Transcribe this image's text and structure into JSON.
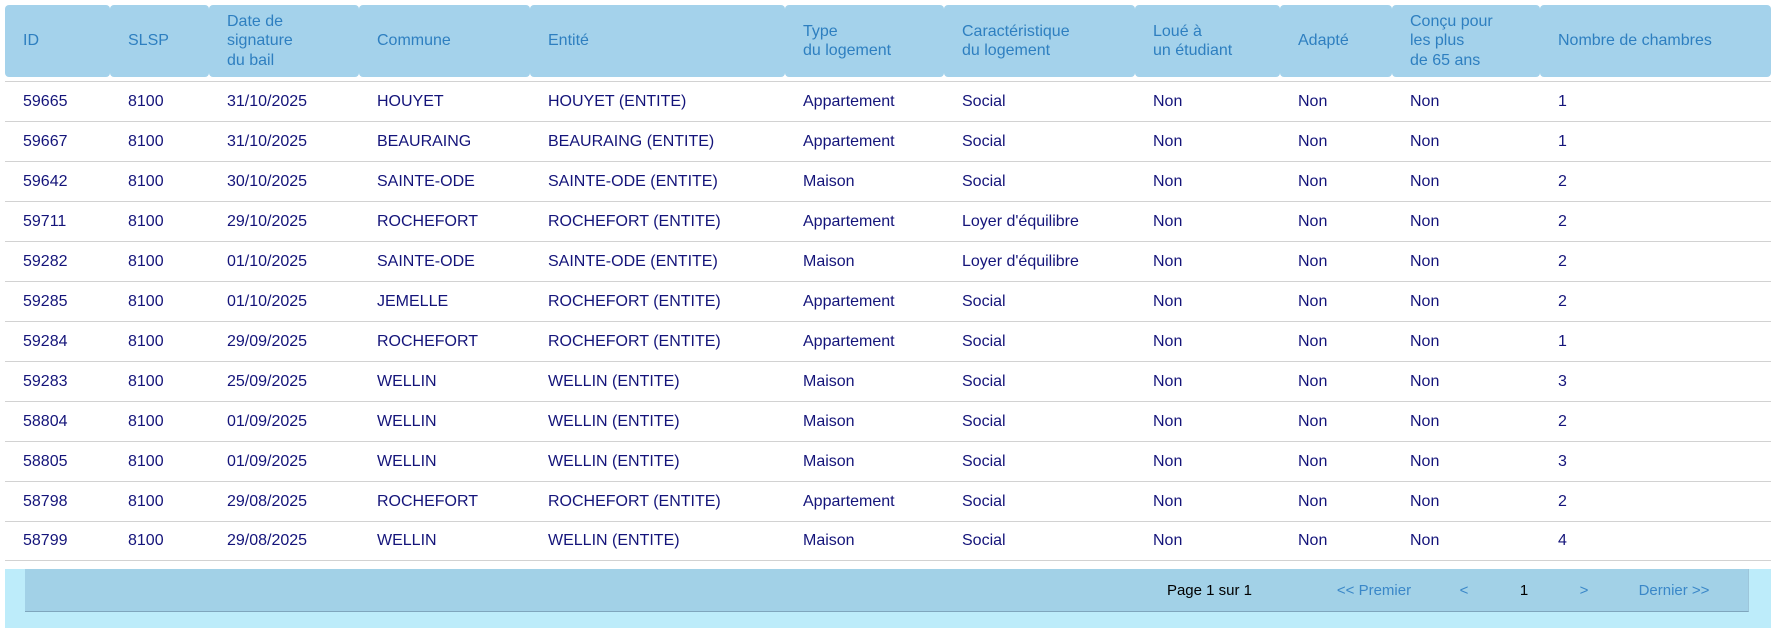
{
  "table": {
    "columns": [
      {
        "id": "id",
        "label": "ID"
      },
      {
        "id": "slsp",
        "label": "SLSP"
      },
      {
        "id": "date-signature-bail",
        "label": "Date de\nsignature\ndu bail"
      },
      {
        "id": "commune",
        "label": "Commune"
      },
      {
        "id": "entite",
        "label": "Entité"
      },
      {
        "id": "type-logement",
        "label": "Type\ndu logement"
      },
      {
        "id": "caracteristique-logement",
        "label": "Caractéristique\ndu logement"
      },
      {
        "id": "loue-etudiant",
        "label": "Loué à\nun étudiant"
      },
      {
        "id": "adapte",
        "label": "Adapté"
      },
      {
        "id": "concu-65-ans",
        "label": "Conçu pour\nles plus\nde 65 ans"
      },
      {
        "id": "nombre-chambres",
        "label": "Nombre de chambres"
      }
    ],
    "rows": [
      [
        "59665",
        "8100",
        "31/10/2025",
        "HOUYET",
        "HOUYET (ENTITE)",
        "Appartement",
        "Social",
        "Non",
        "Non",
        "Non",
        "1"
      ],
      [
        "59667",
        "8100",
        "31/10/2025",
        "BEAURAING",
        "BEAURAING (ENTITE)",
        "Appartement",
        "Social",
        "Non",
        "Non",
        "Non",
        "1"
      ],
      [
        "59642",
        "8100",
        "30/10/2025",
        "SAINTE-ODE",
        "SAINTE-ODE (ENTITE)",
        "Maison",
        "Social",
        "Non",
        "Non",
        "Non",
        "2"
      ],
      [
        "59711",
        "8100",
        "29/10/2025",
        "ROCHEFORT",
        "ROCHEFORT (ENTITE)",
        "Appartement",
        "Loyer d'équilibre",
        "Non",
        "Non",
        "Non",
        "2"
      ],
      [
        "59282",
        "8100",
        "01/10/2025",
        "SAINTE-ODE",
        "SAINTE-ODE (ENTITE)",
        "Maison",
        "Loyer d'équilibre",
        "Non",
        "Non",
        "Non",
        "2"
      ],
      [
        "59285",
        "8100",
        "01/10/2025",
        "JEMELLE",
        "ROCHEFORT (ENTITE)",
        "Appartement",
        "Social",
        "Non",
        "Non",
        "Non",
        "2"
      ],
      [
        "59284",
        "8100",
        "29/09/2025",
        "ROCHEFORT",
        "ROCHEFORT (ENTITE)",
        "Appartement",
        "Social",
        "Non",
        "Non",
        "Non",
        "1"
      ],
      [
        "59283",
        "8100",
        "25/09/2025",
        "WELLIN",
        "WELLIN (ENTITE)",
        "Maison",
        "Social",
        "Non",
        "Non",
        "Non",
        "3"
      ],
      [
        "58804",
        "8100",
        "01/09/2025",
        "WELLIN",
        "WELLIN (ENTITE)",
        "Maison",
        "Social",
        "Non",
        "Non",
        "Non",
        "2"
      ],
      [
        "58805",
        "8100",
        "01/09/2025",
        "WELLIN",
        "WELLIN (ENTITE)",
        "Maison",
        "Social",
        "Non",
        "Non",
        "Non",
        "3"
      ],
      [
        "58798",
        "8100",
        "29/08/2025",
        "ROCHEFORT",
        "ROCHEFORT (ENTITE)",
        "Appartement",
        "Social",
        "Non",
        "Non",
        "Non",
        "2"
      ],
      [
        "58799",
        "8100",
        "29/08/2025",
        "WELLIN",
        "WELLIN (ENTITE)",
        "Maison",
        "Social",
        "Non",
        "Non",
        "Non",
        "4"
      ]
    ]
  },
  "pagination": {
    "page_info": "Page 1 sur 1",
    "first": "<< Premier",
    "prev": "<",
    "current_page": "1",
    "next": ">",
    "last": "Dernier >>"
  },
  "colors": {
    "header_bg": "#a4d2eb",
    "header_text": "#2e7fc0",
    "data_text": "#14147a",
    "row_divider": "#d2d2d2",
    "footer_band": "#bdecfa",
    "footer_bar": "#a2d1e7",
    "link": "#3a87c8",
    "page_text": "#000000"
  }
}
